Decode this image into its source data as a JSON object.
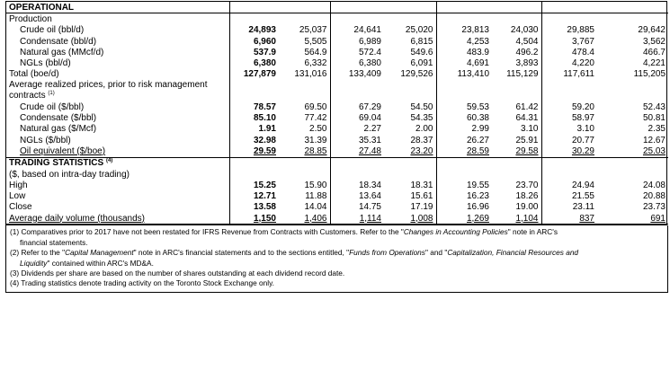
{
  "sections": {
    "operational": "OPERATIONAL",
    "production": "Production",
    "prices_heading": "Average realized prices, prior to risk management contracts",
    "prices_note_ref": "(1)",
    "trading": "TRADING STATISTICS",
    "trading_note_ref": "(4)",
    "trading_sub": "($, based on intra-day trading)"
  },
  "production_rows": [
    {
      "label": "Crude oil (bbl/d)",
      "values": [
        "24,893",
        "25,037",
        "24,641",
        "25,020",
        "23,813",
        "24,030",
        "29,885",
        "29,642"
      ]
    },
    {
      "label": "Condensate (bbl/d)",
      "values": [
        "6,960",
        "5,505",
        "6,989",
        "6,815",
        "4,253",
        "4,504",
        "3,767",
        "3,562"
      ]
    },
    {
      "label": "Natural gas (MMcf/d)",
      "values": [
        "537.9",
        "564.9",
        "572.4",
        "549.6",
        "483.9",
        "496.2",
        "478.4",
        "466.7"
      ]
    },
    {
      "label": "NGLs (bbl/d)",
      "values": [
        "6,380",
        "6,332",
        "6,380",
        "6,091",
        "4,691",
        "3,893",
        "4,220",
        "4,221"
      ]
    },
    {
      "label": "Total (boe/d)",
      "values": [
        "127,879",
        "131,016",
        "133,409",
        "129,526",
        "113,410",
        "115,129",
        "117,611",
        "115,205"
      ]
    }
  ],
  "price_rows": [
    {
      "label": "Crude oil ($/bbl)",
      "values": [
        "78.57",
        "69.50",
        "67.29",
        "54.50",
        "59.53",
        "61.42",
        "59.20",
        "52.43"
      ]
    },
    {
      "label": "Condensate ($/bbl)",
      "values": [
        "85.10",
        "77.42",
        "69.04",
        "54.35",
        "60.38",
        "64.31",
        "58.97",
        "50.81"
      ]
    },
    {
      "label": "Natural gas ($/Mcf)",
      "values": [
        "1.91",
        "2.50",
        "2.27",
        "2.00",
        "2.99",
        "3.10",
        "3.10",
        "2.35"
      ]
    },
    {
      "label": "NGLs ($/bbl)",
      "values": [
        "32.98",
        "31.39",
        "35.31",
        "28.37",
        "26.27",
        "25.91",
        "20.77",
        "12.67"
      ]
    },
    {
      "label": "Oil equivalent ($/boe)",
      "values": [
        "29.59",
        "28.85",
        "27.48",
        "23.20",
        "28.59",
        "29.58",
        "30.29",
        "25.03"
      ]
    }
  ],
  "trading_rows": [
    {
      "label": "High",
      "values": [
        "15.25",
        "15.90",
        "18.34",
        "18.31",
        "19.55",
        "23.70",
        "24.94",
        "24.08"
      ]
    },
    {
      "label": "Low",
      "values": [
        "12.71",
        "11.88",
        "13.64",
        "15.61",
        "16.23",
        "18.26",
        "21.55",
        "20.88"
      ]
    },
    {
      "label": "Close",
      "values": [
        "13.58",
        "14.04",
        "14.75",
        "17.19",
        "16.96",
        "19.00",
        "23.11",
        "23.73"
      ]
    },
    {
      "label": "Average daily volume (thousands)",
      "values": [
        "1,150",
        "1,406",
        "1,114",
        "1,008",
        "1,269",
        "1,104",
        "837",
        "691"
      ]
    }
  ],
  "notes": {
    "n1_pre": "(1) Comparatives prior to 2017 have not been restated for IFRS Revenue from Contracts with Customers. Refer to the \"",
    "n1_em": "Changes in Accounting Policies",
    "n1_post": "\" note in ARC's",
    "n1_cont": "financial statements.",
    "n2_pre": "(2) Refer to the \"",
    "n2_em1": "Capital Management",
    "n2_mid": "\" note in ARC's financial statements and to the sections entitled, \"",
    "n2_em2": "Funds from Operations",
    "n2_mid2": "\" and \"",
    "n2_em3": "Capitalization, Financial Resources and",
    "n2_em4": "Liquidity",
    "n2_post": "\" contained within ARC's MD&A.",
    "n3": "(3) Dividends per share are based on the number of shares outstanding at each dividend record date.",
    "n4": "(4) Trading statistics denote trading activity on the Toronto Stock Exchange only."
  }
}
